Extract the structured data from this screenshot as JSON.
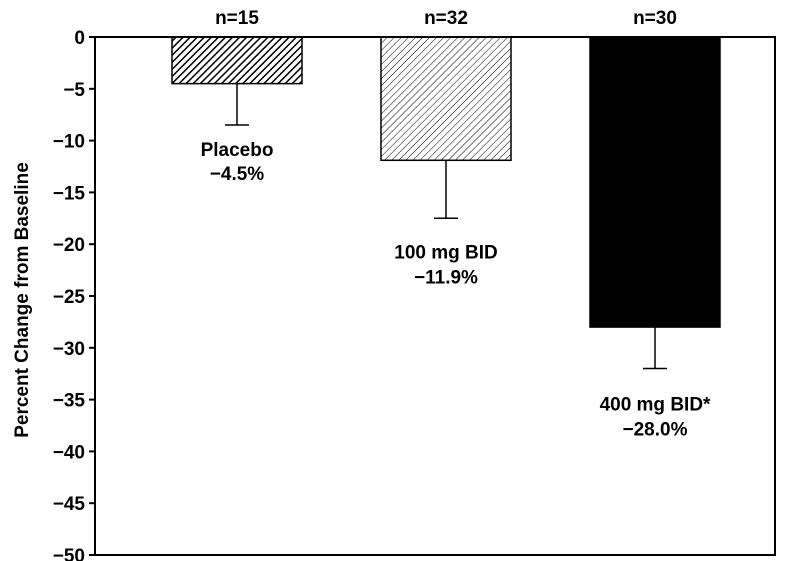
{
  "chart_data": {
    "type": "bar",
    "title": "",
    "xlabel": "",
    "ylabel": "Percent Change from Baseline",
    "ylim": [
      -50,
      0
    ],
    "yticks": [
      0,
      -5,
      -10,
      -15,
      -20,
      -25,
      -30,
      -35,
      -40,
      -45,
      -50
    ],
    "grid": false,
    "legend": "none",
    "categories": [
      "Placebo",
      "100 mg BID",
      "400 mg BID*"
    ],
    "values": [
      -4.5,
      -11.9,
      -28.0
    ],
    "error_lower": [
      -8.5,
      -17.5,
      -32.0
    ],
    "value_labels": [
      "−4.5%",
      "−11.9%",
      "−28.0%"
    ],
    "n_labels": [
      "n=15",
      "n=32",
      "n=30"
    ],
    "fills": [
      "dense-hatch",
      "light-hatch",
      "solid"
    ],
    "colors": {
      "bar_outline": "#000000",
      "solid_fill": "#000000",
      "hatch": "#000000",
      "background": "#ffffff"
    }
  }
}
